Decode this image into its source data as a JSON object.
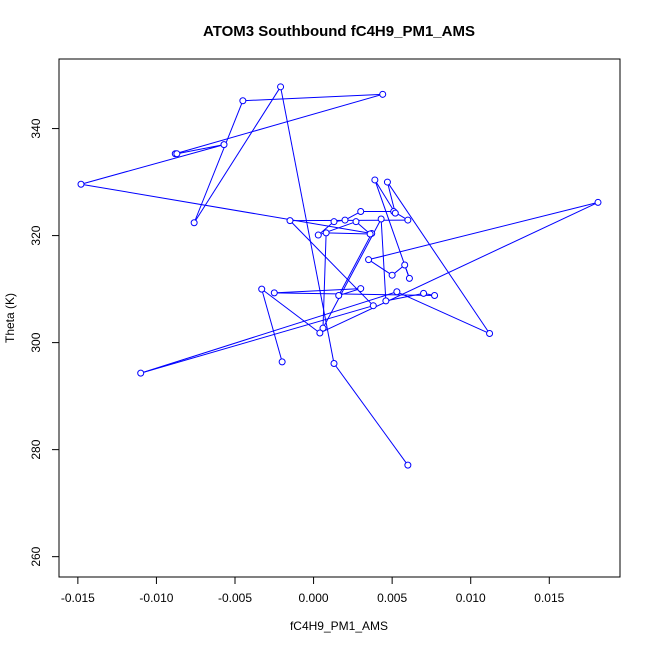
{
  "chart_data": {
    "type": "scatter",
    "title": "ATOM3 Southbound fC4H9_PM1_AMS",
    "xlabel": "fC4H9_PM1_AMS",
    "ylabel": "Theta (K)",
    "xlim": [
      -0.0162,
      0.0195
    ],
    "ylim": [
      256.2,
      353.0
    ],
    "x_ticks": [
      -0.015,
      -0.01,
      -0.005,
      0.0,
      0.005,
      0.01,
      0.015
    ],
    "x_tick_labels": [
      "-0.015",
      "-0.010",
      "-0.005",
      "0.000",
      "0.005",
      "0.010",
      "0.015"
    ],
    "y_ticks": [
      260,
      280,
      300,
      320,
      340
    ],
    "y_tick_labels": [
      "260",
      "280",
      "300",
      "320",
      "340"
    ],
    "point_style": "open-circle",
    "connected": true,
    "color": "#0000ff",
    "grid": false,
    "series": [
      {
        "x": [
          0.006,
          0.0013,
          -0.0021,
          -0.0076,
          -0.0045,
          0.0044,
          -0.0088,
          -0.0087,
          -0.0057,
          -0.0148,
          0.0037,
          0.0016,
          0.003,
          -0.0025,
          0.0077,
          0.007,
          0.0046,
          0.0043,
          0.0006,
          0.0008,
          0.0036,
          0.0027,
          0.0003,
          0.0013,
          0.002,
          0.003,
          0.0051,
          0.006,
          -0.0015,
          0.0038,
          -0.011,
          0.0053,
          0.0112,
          0.0047,
          0.0052,
          0.0039,
          0.0061,
          0.0058,
          0.005,
          0.0035,
          0.0181,
          0.0004,
          -0.0033,
          -0.002
        ],
        "y": [
          277.1,
          296.1,
          347.8,
          322.4,
          345.2,
          346.4,
          335.3,
          335.3,
          337.0,
          329.6,
          320.4,
          308.8,
          310.1,
          309.3,
          308.8,
          309.2,
          307.8,
          323.1,
          302.7,
          320.5,
          320.3,
          322.6,
          320.1,
          322.6,
          322.9,
          324.5,
          324.5,
          322.9,
          322.8,
          306.9,
          294.3,
          309.5,
          301.7,
          330.0,
          324.2,
          330.4,
          312.0,
          314.5,
          312.6,
          315.5,
          326.2,
          301.8,
          310.0,
          296.4
        ]
      }
    ]
  }
}
